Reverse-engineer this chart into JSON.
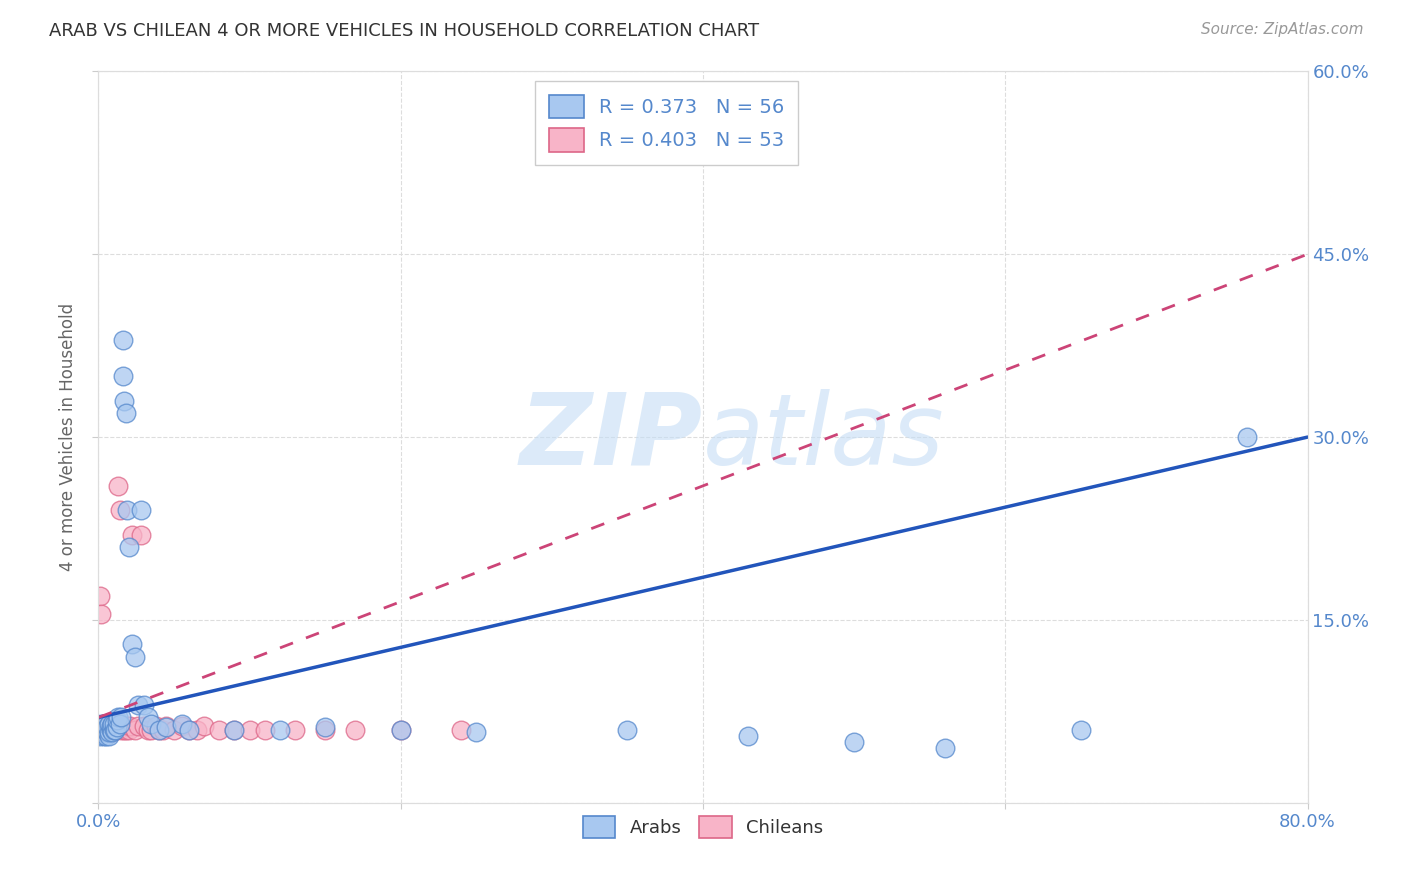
{
  "title": "ARAB VS CHILEAN 4 OR MORE VEHICLES IN HOUSEHOLD CORRELATION CHART",
  "source": "Source: ZipAtlas.com",
  "ylabel": "4 or more Vehicles in Household",
  "xlim": [
    0.0,
    0.8
  ],
  "ylim": [
    0.0,
    0.6
  ],
  "legend_arab_R": "R = 0.373",
  "legend_arab_N": "N = 56",
  "legend_chil_R": "R = 0.403",
  "legend_chil_N": "N = 53",
  "arab_color": "#a8c8f0",
  "chil_color": "#f8b4c8",
  "arab_edge_color": "#5588cc",
  "chil_edge_color": "#dd6688",
  "arab_line_color": "#2255bb",
  "chil_line_color": "#cc4477",
  "watermark_color": "#d8eaf8",
  "background_color": "#ffffff",
  "grid_color": "#dddddd",
  "title_color": "#333333",
  "source_color": "#999999",
  "tick_color": "#5588cc",
  "arab_x": [
    0.001,
    0.002,
    0.002,
    0.003,
    0.003,
    0.004,
    0.004,
    0.004,
    0.005,
    0.005,
    0.005,
    0.006,
    0.006,
    0.007,
    0.007,
    0.007,
    0.008,
    0.008,
    0.009,
    0.009,
    0.01,
    0.01,
    0.011,
    0.012,
    0.012,
    0.013,
    0.014,
    0.015,
    0.016,
    0.016,
    0.017,
    0.018,
    0.019,
    0.02,
    0.022,
    0.024,
    0.026,
    0.028,
    0.03,
    0.033,
    0.035,
    0.04,
    0.045,
    0.055,
    0.06,
    0.09,
    0.12,
    0.15,
    0.2,
    0.25,
    0.35,
    0.43,
    0.5,
    0.56,
    0.65,
    0.76
  ],
  "arab_y": [
    0.055,
    0.06,
    0.065,
    0.058,
    0.063,
    0.055,
    0.058,
    0.062,
    0.055,
    0.06,
    0.065,
    0.058,
    0.062,
    0.055,
    0.058,
    0.065,
    0.06,
    0.063,
    0.058,
    0.065,
    0.06,
    0.065,
    0.06,
    0.062,
    0.068,
    0.07,
    0.065,
    0.07,
    0.38,
    0.35,
    0.33,
    0.32,
    0.24,
    0.21,
    0.13,
    0.12,
    0.08,
    0.24,
    0.08,
    0.07,
    0.065,
    0.06,
    0.062,
    0.065,
    0.06,
    0.06,
    0.06,
    0.062,
    0.06,
    0.058,
    0.06,
    0.055,
    0.05,
    0.045,
    0.06,
    0.3
  ],
  "chil_x": [
    0.001,
    0.002,
    0.003,
    0.003,
    0.004,
    0.004,
    0.005,
    0.005,
    0.006,
    0.006,
    0.007,
    0.007,
    0.008,
    0.008,
    0.009,
    0.009,
    0.01,
    0.011,
    0.012,
    0.013,
    0.014,
    0.015,
    0.016,
    0.017,
    0.018,
    0.019,
    0.02,
    0.021,
    0.022,
    0.024,
    0.026,
    0.028,
    0.03,
    0.033,
    0.035,
    0.038,
    0.04,
    0.043,
    0.045,
    0.05,
    0.055,
    0.06,
    0.065,
    0.07,
    0.08,
    0.09,
    0.1,
    0.11,
    0.13,
    0.15,
    0.17,
    0.2,
    0.24
  ],
  "chil_y": [
    0.17,
    0.155,
    0.06,
    0.065,
    0.06,
    0.065,
    0.058,
    0.063,
    0.06,
    0.065,
    0.058,
    0.063,
    0.06,
    0.065,
    0.058,
    0.063,
    0.065,
    0.06,
    0.065,
    0.26,
    0.24,
    0.06,
    0.063,
    0.06,
    0.06,
    0.063,
    0.06,
    0.063,
    0.22,
    0.06,
    0.063,
    0.22,
    0.063,
    0.06,
    0.06,
    0.063,
    0.06,
    0.06,
    0.063,
    0.06,
    0.063,
    0.06,
    0.06,
    0.063,
    0.06,
    0.06,
    0.06,
    0.06,
    0.06,
    0.06,
    0.06,
    0.06,
    0.06
  ]
}
